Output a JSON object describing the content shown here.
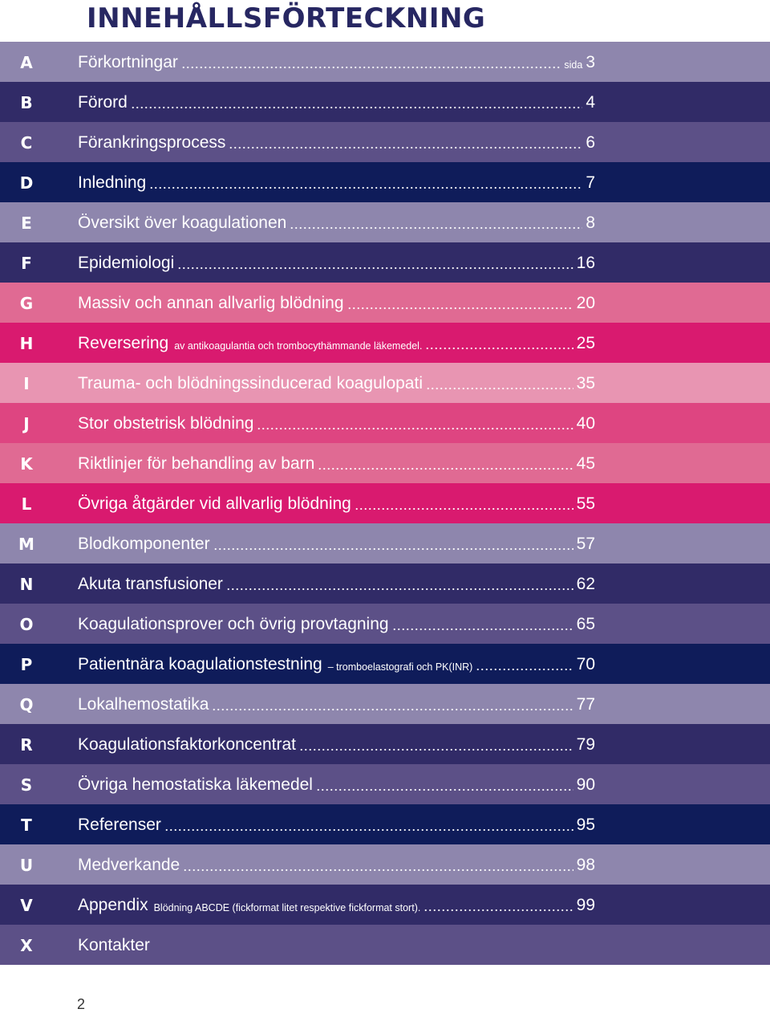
{
  "title": "INNEHÅLLSFÖRTECKNING",
  "entries": [
    {
      "letter": "A",
      "label": "Förkortningar",
      "sub": "",
      "pre": "sida",
      "page": "3",
      "color": "#8e86ad"
    },
    {
      "letter": "B",
      "label": "Förord",
      "sub": "",
      "pre": "",
      "page": "4",
      "color": "#312b67"
    },
    {
      "letter": "C",
      "label": "Förankringsprocess",
      "sub": "",
      "pre": "",
      "page": "6",
      "color": "#5c5087"
    },
    {
      "letter": "D",
      "label": "Inledning",
      "sub": "",
      "pre": "",
      "page": "7",
      "color": "#0f1c5a"
    },
    {
      "letter": "E",
      "label": "Översikt över koagulationen",
      "sub": "",
      "pre": "",
      "page": "8",
      "color": "#8e86ad"
    },
    {
      "letter": "F",
      "label": "Epidemiologi",
      "sub": "",
      "pre": "",
      "page": "16",
      "color": "#312b67"
    },
    {
      "letter": "G",
      "label": "Massiv och annan allvarlig blödning",
      "sub": "",
      "pre": "",
      "page": "20",
      "color": "#e06a93"
    },
    {
      "letter": "H",
      "label": "Reversering",
      "sub": "av antikoagulantia och trombocythämmande läkemedel.",
      "pre": "",
      "page": "25",
      "color": "#d91a6f"
    },
    {
      "letter": "I",
      "label": "Trauma- och blödningssinducerad koagulopati",
      "sub": "",
      "pre": "",
      "page": "35",
      "color": "#e895b2"
    },
    {
      "letter": "J",
      "label": "Stor obstetrisk blödning",
      "sub": "",
      "pre": "",
      "page": "40",
      "color": "#de4581"
    },
    {
      "letter": "K",
      "label": "Riktlinjer för behandling av barn",
      "sub": "",
      "pre": "",
      "page": "45",
      "color": "#e06a93"
    },
    {
      "letter": "L",
      "label": "Övriga åtgärder vid allvarlig blödning",
      "sub": "",
      "pre": "",
      "page": "55",
      "color": "#d91a6f"
    },
    {
      "letter": "M",
      "label": "Blodkomponenter",
      "sub": "",
      "pre": "",
      "page": "57",
      "color": "#8e86ad"
    },
    {
      "letter": "N",
      "label": "Akuta transfusioner",
      "sub": "",
      "pre": "",
      "page": "62",
      "color": "#312b67"
    },
    {
      "letter": "O",
      "label": "Koagulationsprover och övrig provtagning",
      "sub": "",
      "pre": "",
      "page": "65",
      "color": "#5c5087"
    },
    {
      "letter": "P",
      "label": "Patientnära koagulationstestning",
      "sub": "– tromboelastografi och PK(INR)",
      "pre": "",
      "page": "70",
      "color": "#0f1c5a"
    },
    {
      "letter": "Q",
      "label": "Lokalhemostatika",
      "sub": "",
      "pre": "",
      "page": "77",
      "color": "#8e86ad"
    },
    {
      "letter": "R",
      "label": "Koagulationsfaktorkoncentrat",
      "sub": "",
      "pre": "",
      "page": "79",
      "color": "#312b67"
    },
    {
      "letter": "S",
      "label": "Övriga hemostatiska läkemedel",
      "sub": "",
      "pre": "",
      "page": "90",
      "color": "#5c5087"
    },
    {
      "letter": "T",
      "label": "Referenser",
      "sub": "",
      "pre": "",
      "page": "95",
      "color": "#0f1c5a"
    },
    {
      "letter": "U",
      "label": "Medverkande",
      "sub": "",
      "pre": "",
      "page": "98",
      "color": "#8e86ad"
    },
    {
      "letter": "V",
      "label": "Appendix",
      "sub": "Blödning ABCDE (fickformat litet respektive fickformat stort).",
      "pre": "",
      "page": "99",
      "color": "#312b67"
    },
    {
      "letter": "X",
      "label": "Kontakter",
      "sub": "",
      "pre": "",
      "page": "",
      "color": "#5c5087"
    }
  ],
  "folio": "2"
}
